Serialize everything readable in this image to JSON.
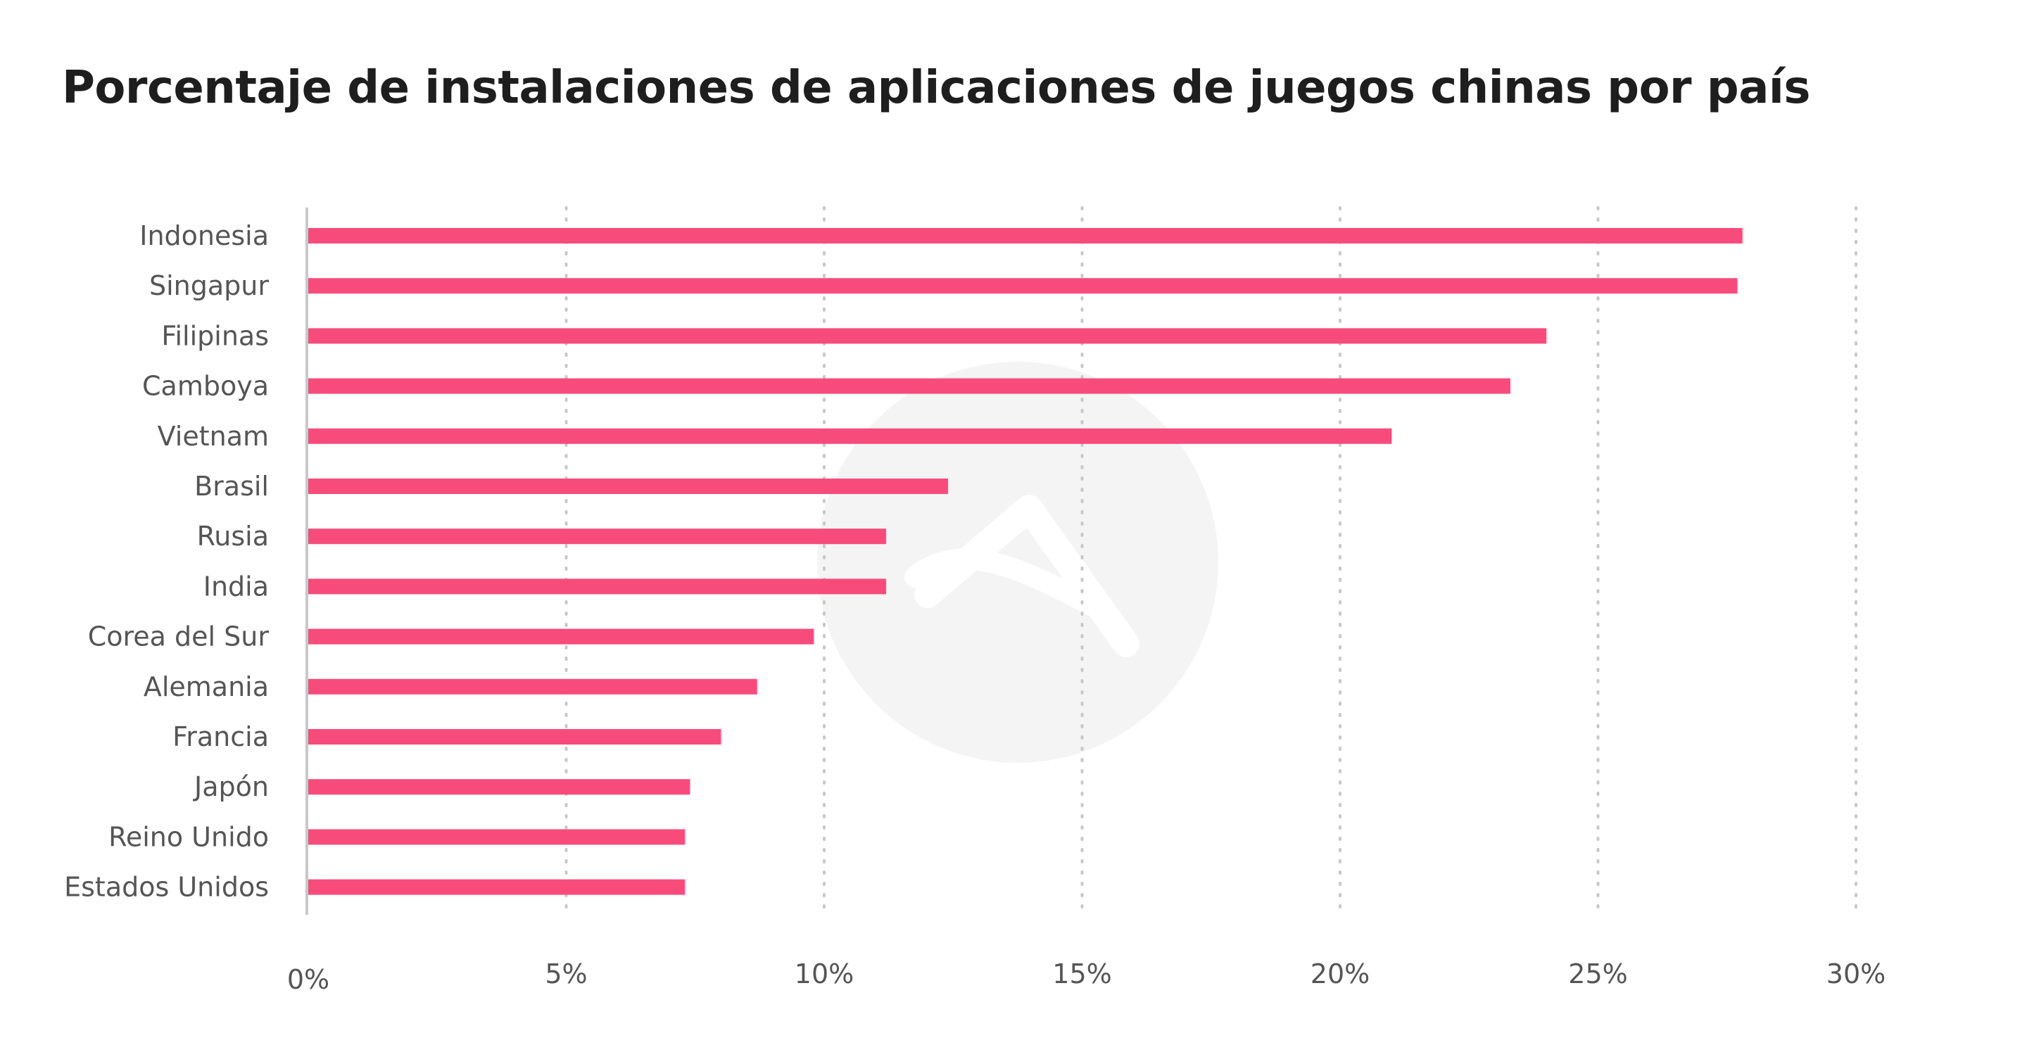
{
  "chart_data": {
    "type": "bar",
    "orientation": "horizontal",
    "title": "Porcentaje de instalaciones de aplicaciones de juegos chinas por país",
    "categories": [
      "Indonesia",
      "Singapur",
      "Filipinas",
      "Camboya",
      "Vietnam",
      "Brasil",
      "Rusia",
      "India",
      "Corea del Sur",
      "Alemania",
      "Francia",
      "Japón",
      "Reino Unido",
      "Estados Unidos"
    ],
    "values": [
      27.8,
      27.7,
      24.0,
      23.3,
      21.0,
      12.4,
      11.2,
      11.2,
      9.8,
      8.7,
      8.0,
      7.4,
      7.3,
      7.3
    ],
    "xlim": [
      0,
      30
    ],
    "xticks": [
      0,
      5,
      10,
      15,
      20,
      25,
      30
    ],
    "xtick_labels": [
      "0%",
      "5%",
      "10%",
      "15%",
      "20%",
      "25%",
      "30%"
    ],
    "grid": "vertical dotted",
    "bar_color": "#f74c7b",
    "grid_color": "#c8c8c8",
    "axis_color": "#c8c8c8",
    "watermark_color": "#f4f4f4"
  }
}
